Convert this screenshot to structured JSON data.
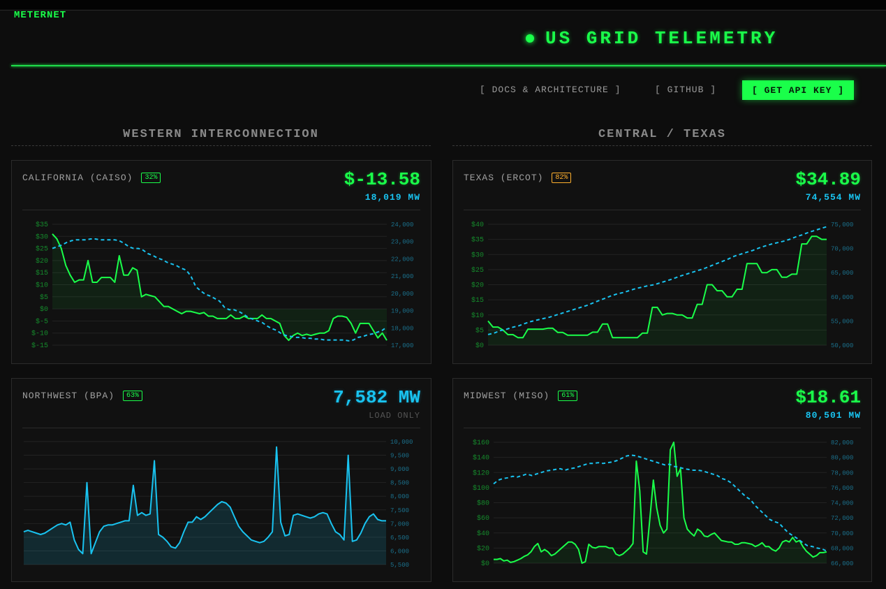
{
  "brand": "METERNET",
  "header": {
    "title": "US GRID TELEMETRY"
  },
  "nav": {
    "docs": "[ DOCS & ARCHITECTURE ]",
    "github": "[ GITHUB ]",
    "api_key": "[ GET API KEY ]"
  },
  "sections": {
    "west": "WESTERN INTERCONNECTION",
    "central": "CENTRAL / TEXAS"
  },
  "colors": {
    "price": "#1aff4a",
    "load": "#19c3f0",
    "warn_badge": "#ffb02e"
  },
  "panels": {
    "caiso": {
      "name": "CALIFORNIA (CAISO)",
      "badge": "32%",
      "price": "$-13.58",
      "load": "18,019 MW",
      "price_ticks": [
        "$35",
        "$30",
        "$25",
        "$20",
        "$15",
        "$10",
        "$5",
        "$0",
        "$-5",
        "$-10",
        "$-15"
      ],
      "load_ticks": [
        "24,000",
        "23,000",
        "22,000",
        "21,000",
        "20,000",
        "19,000",
        "18,000",
        "17,000"
      ]
    },
    "ercot": {
      "name": "TEXAS (ERCOT)",
      "badge": "82%",
      "price": "$34.89",
      "load": "74,554 MW",
      "price_ticks": [
        "$40",
        "$35",
        "$30",
        "$25",
        "$20",
        "$15",
        "$10",
        "$5",
        "$0"
      ],
      "load_ticks": [
        "75,000",
        "70,000",
        "65,000",
        "60,000",
        "55,000",
        "50,000"
      ]
    },
    "bpa": {
      "name": "NORTHWEST (BPA)",
      "badge": "63%",
      "load": "7,582 MW",
      "note": "LOAD ONLY",
      "load_ticks": [
        "10,000",
        "9,500",
        "9,000",
        "8,500",
        "8,000",
        "7,500",
        "7,000",
        "6,500",
        "6,000",
        "5,500"
      ]
    },
    "miso": {
      "name": "MIDWEST (MISO)",
      "badge": "61%",
      "price": "$18.61",
      "load": "80,501 MW",
      "price_ticks": [
        "$160",
        "$140",
        "$120",
        "$100",
        "$80",
        "$60",
        "$40",
        "$20",
        "$0"
      ],
      "load_ticks": [
        "82,000",
        "80,000",
        "78,000",
        "76,000",
        "74,000",
        "72,000",
        "70,000",
        "68,000",
        "66,000"
      ]
    }
  },
  "chart_data": [
    {
      "type": "line",
      "region": "caiso",
      "y_left_range": [
        -15,
        35
      ],
      "y_right_range": [
        17000,
        24000
      ],
      "series": [
        {
          "axis": "left",
          "style": "solid",
          "values": [
            31,
            29,
            25,
            18,
            14,
            11,
            12,
            12,
            20,
            11,
            11,
            13,
            13,
            13,
            11,
            22,
            14,
            14,
            17,
            16,
            5,
            6,
            5.5,
            5,
            3,
            1,
            1,
            0,
            -1,
            -2,
            -1,
            -1,
            -1.5,
            -2,
            -1.5,
            -3,
            -3,
            -4,
            -4,
            -4,
            -2.5,
            -4,
            -4,
            -3,
            -4,
            -4,
            -4,
            -2.5,
            -4,
            -4,
            -5,
            -6,
            -11,
            -13,
            -11,
            -10,
            -11,
            -10.5,
            -11,
            -10.5,
            -10,
            -10,
            -9,
            -4,
            -3,
            -3,
            -3.5,
            -6,
            -10,
            -6,
            -6,
            -6,
            -9,
            -12,
            -10,
            -13
          ]
        },
        {
          "axis": "right",
          "style": "dashed",
          "values": [
            22600,
            22700,
            22800,
            22950,
            23050,
            23100,
            23100,
            23100,
            23150,
            23150,
            23100,
            23100,
            23100,
            23100,
            23050,
            22900,
            22700,
            22600,
            22600,
            22500,
            22300,
            22200,
            22050,
            21950,
            21800,
            21700,
            21600,
            21450,
            21350,
            21000,
            20400,
            20150,
            19950,
            19850,
            19700,
            19550,
            19200,
            19050,
            19050,
            18950,
            18800,
            18600,
            18500,
            18400,
            18300,
            18100,
            17950,
            17850,
            17650,
            17550,
            17500,
            17450,
            17450,
            17400,
            17400,
            17350,
            17350,
            17300,
            17300,
            17300,
            17300,
            17300,
            17250,
            17300,
            17450,
            17500,
            17600,
            17650,
            17750,
            17850,
            18050
          ]
        }
      ]
    },
    {
      "type": "line",
      "region": "ercot",
      "y_left_range": [
        0,
        40
      ],
      "y_right_range": [
        50000,
        75000
      ],
      "series": [
        {
          "axis": "left",
          "style": "solid",
          "values": [
            8,
            6,
            6,
            5,
            3.5,
            3.5,
            2.5,
            2.5,
            5.3,
            5.3,
            5.3,
            5.3,
            5.6,
            5.6,
            4.2,
            4.2,
            3.3,
            3.3,
            3.3,
            3.3,
            3.3,
            4.3,
            4.3,
            7,
            7,
            2.5,
            2.5,
            2.5,
            2.5,
            2.5,
            2.5,
            4,
            4,
            12.5,
            12.5,
            10,
            10.5,
            10.5,
            10,
            10,
            9,
            9,
            13.5,
            13.5,
            20,
            20,
            18,
            18,
            16,
            16,
            18.5,
            18.5,
            27,
            27,
            27,
            24,
            24,
            25,
            25,
            22.5,
            22.5,
            23.5,
            23.5,
            33.5,
            33.5,
            36,
            36,
            35,
            35
          ]
        },
        {
          "axis": "right",
          "style": "dashed",
          "values": [
            52200,
            52500,
            53000,
            53300,
            53700,
            54000,
            54500,
            54900,
            55200,
            55500,
            55800,
            56200,
            56600,
            57000,
            57400,
            57800,
            58200,
            58700,
            59200,
            59700,
            60200,
            60600,
            60900,
            61300,
            61700,
            62000,
            62300,
            62500,
            62900,
            63300,
            63700,
            64200,
            64600,
            65000,
            65400,
            65800,
            66300,
            66800,
            67300,
            67800,
            68400,
            68800,
            69200,
            69600,
            70100,
            70500,
            70900,
            71200,
            71500,
            71900,
            72400,
            72800,
            73300,
            73700,
            74100,
            74500
          ]
        }
      ]
    },
    {
      "type": "area",
      "region": "bpa",
      "y_right_range": [
        5500,
        10000
      ],
      "series": [
        {
          "axis": "right",
          "style": "solid",
          "values": [
            6700,
            6750,
            6700,
            6650,
            6600,
            6650,
            6750,
            6850,
            6950,
            7000,
            6950,
            7050,
            6400,
            6050,
            5900,
            8500,
            5900,
            6300,
            6700,
            6900,
            6950,
            6950,
            7000,
            7050,
            7100,
            7100,
            8400,
            7300,
            7400,
            7300,
            7350,
            9300,
            6600,
            6500,
            6350,
            6150,
            6100,
            6300,
            6700,
            7050,
            7050,
            7250,
            7150,
            7250,
            7400,
            7550,
            7700,
            7800,
            7750,
            7600,
            7250,
            6900,
            6700,
            6550,
            6400,
            6350,
            6300,
            6350,
            6500,
            6700,
            9800,
            7050,
            6550,
            6600,
            7300,
            7350,
            7300,
            7250,
            7200,
            7250,
            7350,
            7400,
            7350,
            7000,
            6700,
            6600,
            6400,
            9500,
            6350,
            6400,
            6650,
            7000,
            7250,
            7350,
            7150,
            7100,
            7100
          ]
        }
      ]
    },
    {
      "type": "line",
      "region": "miso",
      "y_left_range": [
        0,
        160
      ],
      "y_right_range": [
        66000,
        82000
      ],
      "series": [
        {
          "axis": "left",
          "style": "solid",
          "values": [
            5,
            5,
            6,
            3,
            4,
            1,
            2,
            4,
            6,
            9,
            11,
            15,
            22,
            26,
            15,
            18,
            15,
            10,
            12,
            16,
            20,
            24,
            28,
            28,
            25,
            18,
            0,
            2,
            25,
            21,
            20,
            22,
            22,
            22,
            20,
            20,
            12,
            10,
            12,
            16,
            20,
            26,
            135,
            96,
            15,
            12,
            60,
            110,
            73,
            50,
            40,
            45,
            150,
            160,
            115,
            125,
            60,
            45,
            40,
            36,
            45,
            42,
            36,
            35,
            38,
            40,
            35,
            30,
            29,
            28,
            28,
            25,
            25,
            27,
            27,
            26,
            25,
            22,
            24,
            27,
            22,
            22,
            18,
            16,
            20,
            28,
            30,
            28,
            34,
            28,
            30,
            22,
            16,
            12,
            8,
            10,
            14,
            14,
            15
          ]
        },
        {
          "axis": "right",
          "style": "dashed",
          "values": [
            76500,
            77000,
            77200,
            77300,
            77500,
            77400,
            77600,
            77800,
            77600,
            77800,
            78000,
            78200,
            78300,
            78400,
            78500,
            78300,
            78500,
            78600,
            78800,
            79000,
            79200,
            79200,
            79300,
            79200,
            79300,
            79400,
            79600,
            79900,
            80200,
            80300,
            80200,
            80000,
            79800,
            79600,
            79400,
            79200,
            79000,
            79100,
            78800,
            78700,
            78500,
            78400,
            78300,
            78300,
            78200,
            78000,
            77800,
            77600,
            77200,
            77000,
            76600,
            76000,
            75400,
            74800,
            74400,
            73600,
            73000,
            72400,
            71800,
            71500,
            71300,
            70600,
            70000,
            69600,
            69200,
            68700,
            68300,
            68200,
            68000,
            67900,
            67600
          ]
        }
      ]
    }
  ]
}
